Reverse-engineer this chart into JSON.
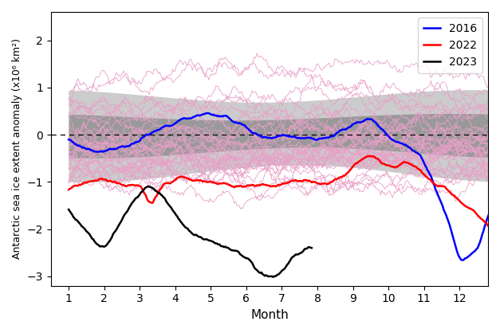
{
  "xlabel": "Month",
  "ylabel": "Antarctic sea ice extent anomaly (x10⁶ km²)",
  "xlim": [
    0.5,
    12.8
  ],
  "ylim": [
    -3.2,
    2.6
  ],
  "yticks": [
    -3,
    -2,
    -1,
    0,
    1,
    2
  ],
  "xticks": [
    1,
    2,
    3,
    4,
    5,
    6,
    7,
    8,
    9,
    10,
    11,
    12
  ],
  "std1_color": "#999999",
  "std2_color": "#cccccc",
  "bg_color": "#ffffff",
  "other_years_color": "#e8a0c8",
  "year2016_color": "blue",
  "year2022_color": "red",
  "year2023_color": "black",
  "legend_loc": "upper right",
  "dpi": 100,
  "figsize": [
    6.27,
    4.18
  ],
  "n_other_years": 35,
  "other_lw": 0.6,
  "highlight_lw": 1.8
}
